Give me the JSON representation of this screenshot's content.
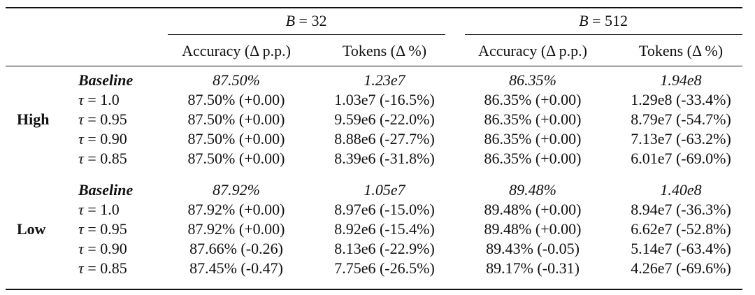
{
  "table": {
    "groups": [
      {
        "label_var": "B",
        "label_eq": " = ",
        "label_val": "32"
      },
      {
        "label_var": "B",
        "label_eq": " = ",
        "label_val": "512"
      }
    ],
    "columns": [
      "Accuracy (Δ p.p.)",
      "Tokens (Δ %)",
      "Accuracy (Δ p.p.)",
      "Tokens (Δ %)"
    ],
    "sections": [
      {
        "name": "High",
        "rows": [
          {
            "label_tau": "",
            "label": "Baseline",
            "cells": [
              "87.50%",
              "1.23e7",
              "86.35%",
              "1.94e8"
            ]
          },
          {
            "label_tau": "τ",
            "label": " = 1.0",
            "cells": [
              "87.50% (+0.00)",
              "1.03e7 (-16.5%)",
              "86.35% (+0.00)",
              "1.29e8 (-33.4%)"
            ]
          },
          {
            "label_tau": "τ",
            "label": " = 0.95",
            "cells": [
              "87.50% (+0.00)",
              "9.59e6 (-22.0%)",
              "86.35% (+0.00)",
              "8.79e7 (-54.7%)"
            ]
          },
          {
            "label_tau": "τ",
            "label": " = 0.90",
            "cells": [
              "87.50% (+0.00)",
              "8.88e6 (-27.7%)",
              "86.35% (+0.00)",
              "7.13e7 (-63.2%)"
            ]
          },
          {
            "label_tau": "τ",
            "label": " = 0.85",
            "cells": [
              "87.50% (+0.00)",
              "8.39e6 (-31.8%)",
              "86.35% (+0.00)",
              "6.01e7 (-69.0%)"
            ]
          }
        ]
      },
      {
        "name": "Low",
        "rows": [
          {
            "label_tau": "",
            "label": "Baseline",
            "cells": [
              "87.92%",
              "1.05e7",
              "89.48%",
              "1.40e8"
            ]
          },
          {
            "label_tau": "τ",
            "label": " = 1.0",
            "cells": [
              "87.92% (+0.00)",
              "8.97e6 (-15.0%)",
              "89.48% (+0.00)",
              "8.94e7 (-36.3%)"
            ]
          },
          {
            "label_tau": "τ",
            "label": " = 0.95",
            "cells": [
              "87.92% (+0.00)",
              "8.92e6 (-15.4%)",
              "89.48% (+0.00)",
              "6.62e7 (-52.8%)"
            ]
          },
          {
            "label_tau": "τ",
            "label": " = 0.90",
            "cells": [
              "87.66% (-0.26)",
              "8.13e6 (-22.9%)",
              "89.43% (-0.05)",
              "5.14e7 (-63.4%)"
            ]
          },
          {
            "label_tau": "τ",
            "label": " = 0.85",
            "cells": [
              "87.45% (-0.47)",
              "7.75e6 (-26.5%)",
              "89.17% (-0.31)",
              "4.26e7 (-69.6%)"
            ]
          }
        ]
      }
    ]
  }
}
